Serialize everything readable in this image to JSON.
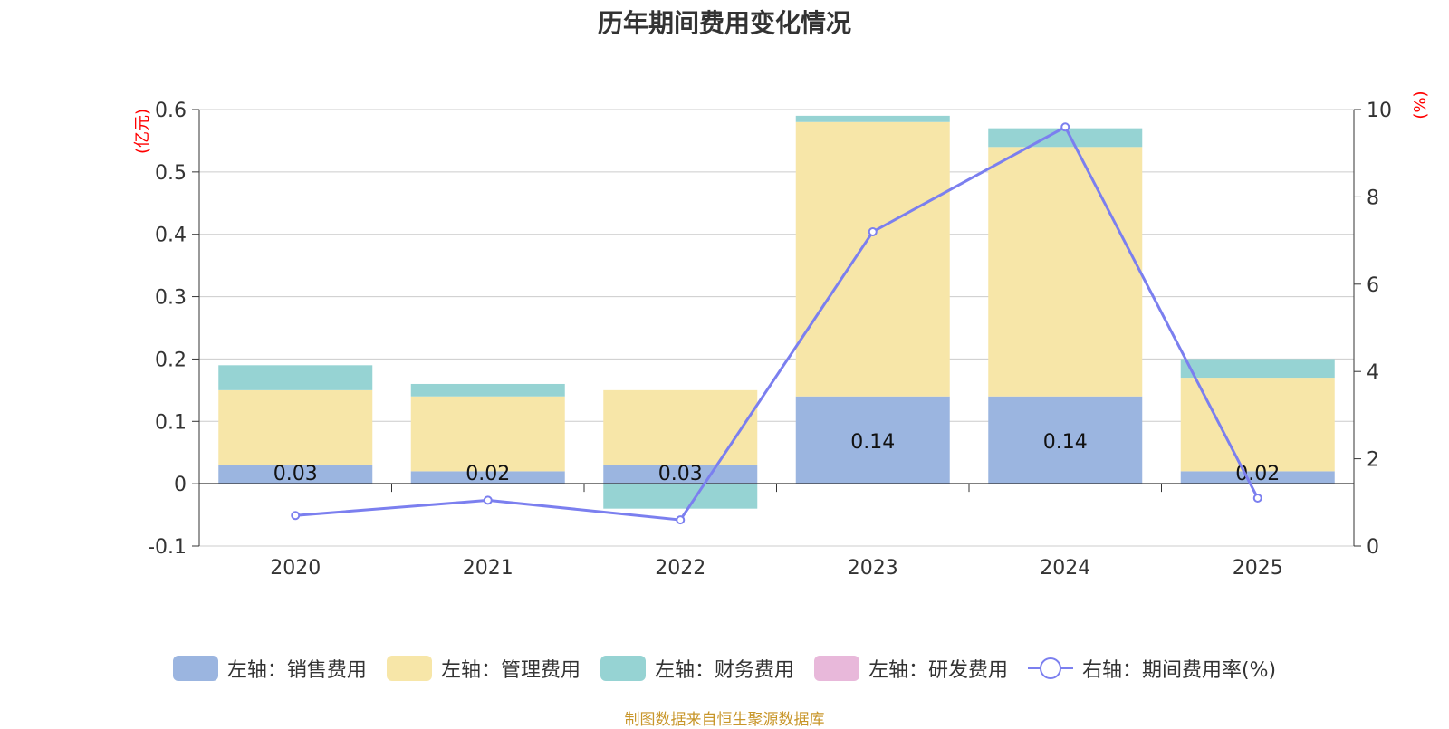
{
  "chart_data": {
    "type": "bar",
    "title": "历年期间费用变化情况",
    "categories": [
      "2020",
      "2021",
      "2022",
      "2023",
      "2024",
      "2025"
    ],
    "y_left": {
      "label": "(亿元)",
      "ylim": [
        -0.1,
        0.6
      ],
      "ticks": [
        -0.1,
        0,
        0.1,
        0.2,
        0.3,
        0.4,
        0.5,
        0.6
      ]
    },
    "y_right": {
      "label": "(%)",
      "ylim": [
        0,
        10
      ],
      "ticks": [
        0,
        2,
        4,
        6,
        8,
        10
      ]
    },
    "series": [
      {
        "name": "左轴：销售费用",
        "type": "bar",
        "color": "#9BB5E0",
        "values": [
          0.03,
          0.02,
          0.03,
          0.14,
          0.14,
          0.02
        ],
        "labels": [
          "0.03",
          "0.02",
          "0.03",
          "0.14",
          "0.14",
          "0.02"
        ]
      },
      {
        "name": "左轴：管理费用",
        "type": "bar",
        "color": "#F7E6A8",
        "values": [
          0.12,
          0.12,
          0.12,
          0.44,
          0.4,
          0.15
        ]
      },
      {
        "name": "左轴：财务费用",
        "type": "bar",
        "color": "#96D3D3",
        "values": [
          0.04,
          0.02,
          -0.04,
          0.01,
          0.03,
          0.03
        ]
      },
      {
        "name": "左轴：研发费用",
        "type": "bar",
        "color": "#E8B8DA",
        "values": [
          0,
          0,
          0,
          0,
          0,
          0
        ]
      },
      {
        "name": "右轴：期间费用率(%)",
        "type": "line",
        "color": "#7B7FEF",
        "values": [
          0.7,
          1.05,
          0.6,
          7.2,
          9.6,
          1.1
        ]
      }
    ]
  },
  "source": "制图数据来自恒生聚源数据库"
}
